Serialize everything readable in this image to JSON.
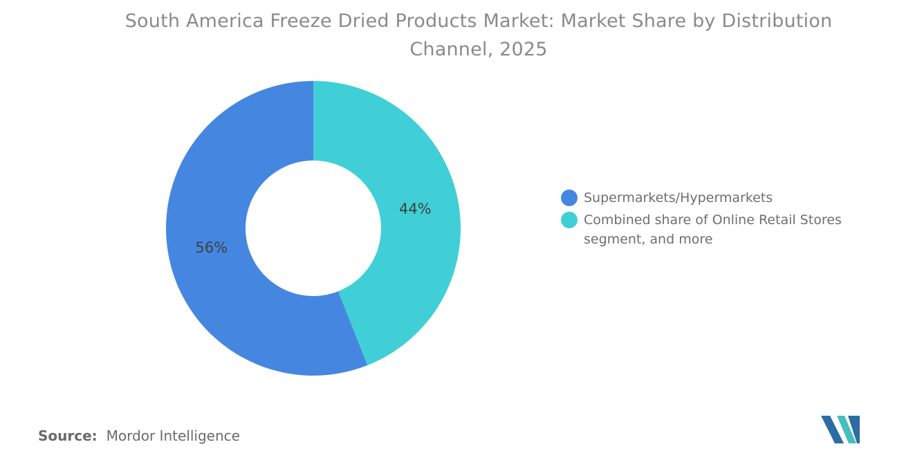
{
  "title": {
    "lines": [
      "South America Freeze Dried Products Market: Market Share by Distribution",
      "Channel, 2025"
    ],
    "full": "South America Freeze Dried Products Market: Market Share by Distribution Channel, 2025"
  },
  "chart_data": {
    "type": "pie",
    "subtype": "donut",
    "title": "South America Freeze Dried Products Market: Market Share by Distribution Channel, 2025",
    "unit": "%",
    "segments": [
      {
        "label": "Supermarkets/Hypermarkets",
        "value": 56,
        "data_label": "56%",
        "color": "#4587E0"
      },
      {
        "label": "Combined share of Online Retail Stores segment, and more",
        "value": 44,
        "data_label": "44%",
        "color": "#40CFD6"
      }
    ],
    "start": "top",
    "inner_radius_ratio": 0.46,
    "label_color": "#3F3F3F",
    "legend_position": "right",
    "grid": false
  },
  "legend": {
    "items": [
      {
        "label": "Supermarkets/Hypermarkets"
      },
      {
        "label": "Combined share of Online Retail Stores segment, and more"
      }
    ]
  },
  "source": {
    "label": "Source:",
    "text": "Mordor Intelligence"
  },
  "logo": {
    "name": "Mordor Intelligence",
    "colors": {
      "blue": "#2C6CA4",
      "teal": "#46BFC0"
    }
  },
  "colors": {
    "background": "#FFFFFF",
    "title_text": "#8A8A8A",
    "legend_text": "#6E6E6E",
    "source_text": "#6A6A6A",
    "slice_label_text": "#3F3F3F"
  }
}
